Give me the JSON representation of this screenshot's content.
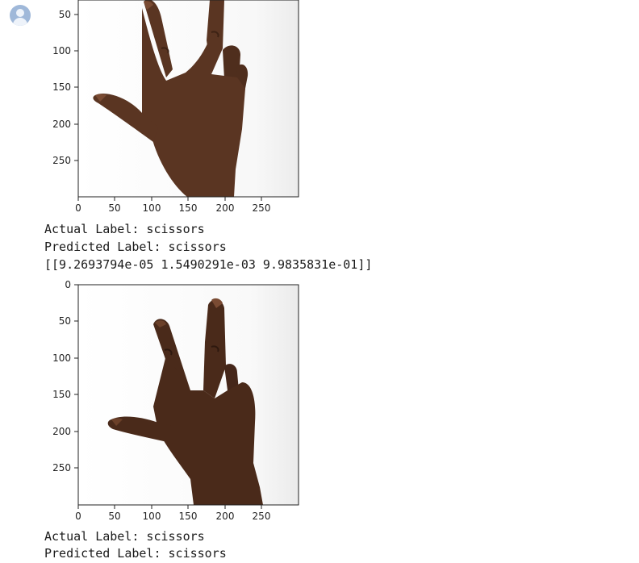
{
  "cells": [
    {
      "actual_label": "Actual Label: scissors",
      "predicted_label": "Predicted Label: scissors",
      "probabilities": "[[9.2693794e-05 1.5490291e-03 9.9835831e-01]]",
      "plot": {
        "y_ticks": [
          "50",
          "100",
          "150",
          "200",
          "250"
        ],
        "x_ticks": [
          "0",
          "50",
          "100",
          "150",
          "200",
          "250"
        ]
      }
    },
    {
      "actual_label": "Actual Label: scissors",
      "predicted_label": "Predicted Label: scissors",
      "plot": {
        "y_ticks": [
          "0",
          "50",
          "100",
          "150",
          "200",
          "250"
        ],
        "x_ticks": [
          "0",
          "50",
          "100",
          "150",
          "200",
          "250"
        ]
      }
    }
  ],
  "colors": {
    "skin": "#5a3522",
    "skin_highlight": "#7a4b33",
    "avatar": "#9fb8d9"
  },
  "icons": {
    "avatar": "user-avatar-icon"
  }
}
